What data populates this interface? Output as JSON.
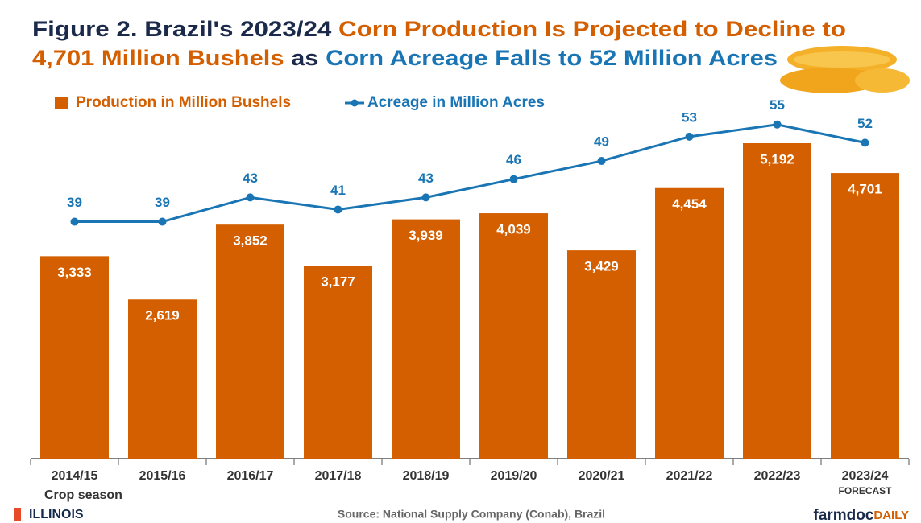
{
  "chart_data": {
    "type": "bar",
    "title_lines": [
      [
        {
          "text": "Figure 2. Brazil's 2023/24 ",
          "color": "#1b2a4a"
        },
        {
          "text": "Corn Production Is Projected to Decline to",
          "color": "#d35f00"
        }
      ],
      [
        {
          "text": "4,701 Million Bushels",
          "color": "#d35f00"
        },
        {
          "text": " as ",
          "color": "#1b2a4a"
        },
        {
          "text": "Corn Acreage Falls to 52 Million Acres",
          "color": "#1a75b4"
        }
      ]
    ],
    "categories": [
      "2014/15",
      "2015/16",
      "2016/17",
      "2017/18",
      "2018/19",
      "2019/20",
      "2020/21",
      "2021/22",
      "2022/23",
      "2023/24"
    ],
    "category_note": {
      "index": 9,
      "text": "FORECAST"
    },
    "x_label": "Crop season",
    "series": [
      {
        "name": "Production in Million Bushels",
        "type": "bar",
        "color": "#d35f00",
        "values": [
          3333,
          2619,
          3852,
          3177,
          3939,
          4039,
          3429,
          4454,
          5192,
          4701
        ],
        "value_labels": [
          "3,333",
          "2,619",
          "3,852",
          "3,177",
          "3,939",
          "4,039",
          "3,429",
          "4,454",
          "5,192",
          "4,701"
        ]
      },
      {
        "name": "Acreage in Million Acres",
        "type": "line",
        "axis": "y2",
        "color": "#1a75b4",
        "values": [
          39,
          39,
          43,
          41,
          43,
          46,
          49,
          53,
          55,
          52
        ]
      }
    ],
    "ylim": [
      0,
      6000
    ],
    "y2lim": [
      0,
      60
    ],
    "source": "Source: National Supply Company (Conab), Brazil",
    "logo": "ILLINOIS",
    "brand": [
      "farmdoc",
      "DAILY"
    ]
  }
}
